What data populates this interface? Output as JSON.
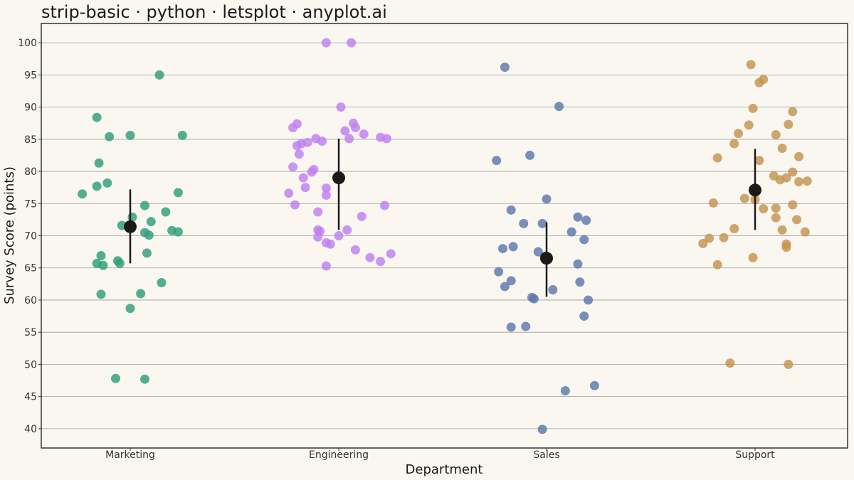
{
  "chart_data": {
    "type": "scatter",
    "subtype": "strip",
    "title": "strip-basic · python · letsplot · anyplot.ai",
    "xlabel": "Department",
    "ylabel": "Survey Score (points)",
    "ylim": [
      37,
      103
    ],
    "yticks": [
      40,
      45,
      50,
      55,
      60,
      65,
      70,
      75,
      80,
      85,
      90,
      95,
      100
    ],
    "grid": true,
    "categories": [
      "Marketing",
      "Engineering",
      "Sales",
      "Support"
    ],
    "series": [
      {
        "category": "Marketing",
        "color": "#2E9E7A",
        "mean": 71.4,
        "sd": [
          65.7,
          77.2
        ],
        "points": [
          [
            -0.23,
            76.5
          ],
          [
            -0.16,
            88.4
          ],
          [
            -0.1,
            85.4
          ],
          [
            0.0,
            85.6
          ],
          [
            0.25,
            85.6
          ],
          [
            -0.15,
            81.3
          ],
          [
            -0.11,
            78.2
          ],
          [
            -0.16,
            77.7
          ],
          [
            0.23,
            76.7
          ],
          [
            0.14,
            95.0
          ],
          [
            0.07,
            74.7
          ],
          [
            0.17,
            73.7
          ],
          [
            0.01,
            72.9
          ],
          [
            0.1,
            72.2
          ],
          [
            -0.04,
            71.6
          ],
          [
            0.07,
            70.5
          ],
          [
            0.09,
            70.1
          ],
          [
            0.2,
            70.8
          ],
          [
            0.23,
            70.6
          ],
          [
            0.08,
            67.3
          ],
          [
            -0.14,
            66.9
          ],
          [
            -0.06,
            66.1
          ],
          [
            -0.16,
            65.7
          ],
          [
            -0.13,
            65.4
          ],
          [
            -0.05,
            65.7
          ],
          [
            0.15,
            62.7
          ],
          [
            -0.14,
            60.9
          ],
          [
            0.05,
            61.0
          ],
          [
            0.0,
            58.7
          ],
          [
            -0.07,
            47.8
          ],
          [
            0.07,
            47.7
          ]
        ]
      },
      {
        "category": "Engineering",
        "color": "#C07FEF",
        "mean": 79.0,
        "sd": [
          70.9,
          85.1
        ],
        "points": [
          [
            -0.22,
            86.8
          ],
          [
            -0.2,
            87.4
          ],
          [
            -0.2,
            84.0
          ],
          [
            -0.18,
            84.3
          ],
          [
            -0.15,
            84.5
          ],
          [
            -0.11,
            85.1
          ],
          [
            -0.08,
            84.7
          ],
          [
            -0.22,
            80.7
          ],
          [
            -0.19,
            82.7
          ],
          [
            -0.17,
            79.0
          ],
          [
            -0.13,
            79.9
          ],
          [
            -0.12,
            80.3
          ],
          [
            -0.16,
            77.5
          ],
          [
            -0.24,
            76.6
          ],
          [
            -0.21,
            74.8
          ],
          [
            -0.06,
            100.0
          ],
          [
            0.06,
            100.0
          ],
          [
            0.01,
            90.0
          ],
          [
            0.03,
            86.3
          ],
          [
            0.07,
            87.5
          ],
          [
            0.08,
            86.8
          ],
          [
            0.05,
            85.1
          ],
          [
            0.12,
            85.8
          ],
          [
            0.2,
            85.3
          ],
          [
            0.23,
            85.1
          ],
          [
            -0.06,
            77.4
          ],
          [
            -0.06,
            76.3
          ],
          [
            -0.1,
            73.7
          ],
          [
            0.22,
            74.7
          ],
          [
            0.11,
            73.0
          ],
          [
            -0.1,
            70.9
          ],
          [
            -0.09,
            70.7
          ],
          [
            0.04,
            70.9
          ],
          [
            0.0,
            70.0
          ],
          [
            -0.1,
            69.8
          ],
          [
            -0.06,
            68.9
          ],
          [
            -0.04,
            68.7
          ],
          [
            0.08,
            67.8
          ],
          [
            0.15,
            66.6
          ],
          [
            0.2,
            66.0
          ],
          [
            0.25,
            67.2
          ],
          [
            -0.06,
            65.3
          ]
        ]
      },
      {
        "category": "Sales",
        "color": "#5B78A9",
        "mean": 66.5,
        "sd": [
          60.5,
          72.1
        ],
        "points": [
          [
            -0.2,
            96.2
          ],
          [
            0.06,
            90.1
          ],
          [
            -0.24,
            81.7
          ],
          [
            -0.08,
            82.5
          ],
          [
            0.0,
            75.7
          ],
          [
            -0.17,
            74.0
          ],
          [
            -0.11,
            71.9
          ],
          [
            -0.02,
            71.9
          ],
          [
            0.15,
            72.9
          ],
          [
            0.19,
            72.4
          ],
          [
            0.12,
            70.6
          ],
          [
            0.18,
            69.4
          ],
          [
            -0.21,
            68.0
          ],
          [
            -0.16,
            68.3
          ],
          [
            -0.04,
            67.5
          ],
          [
            -0.01,
            66.8
          ],
          [
            0.15,
            65.6
          ],
          [
            -0.23,
            64.4
          ],
          [
            -0.17,
            63.0
          ],
          [
            -0.2,
            62.1
          ],
          [
            0.16,
            62.8
          ],
          [
            0.03,
            61.6
          ],
          [
            -0.07,
            60.4
          ],
          [
            -0.06,
            60.2
          ],
          [
            0.2,
            60.0
          ],
          [
            -0.17,
            55.8
          ],
          [
            -0.1,
            55.9
          ],
          [
            0.18,
            57.5
          ],
          [
            0.09,
            45.9
          ],
          [
            0.23,
            46.7
          ],
          [
            -0.02,
            39.9
          ]
        ]
      },
      {
        "category": "Support",
        "color": "#C4924E",
        "mean": 77.1,
        "sd": [
          70.9,
          83.5
        ],
        "points": [
          [
            -0.02,
            96.6
          ],
          [
            0.04,
            94.3
          ],
          [
            0.02,
            93.8
          ],
          [
            -0.01,
            89.8
          ],
          [
            0.18,
            89.3
          ],
          [
            -0.03,
            87.2
          ],
          [
            0.16,
            87.3
          ],
          [
            -0.08,
            85.9
          ],
          [
            0.1,
            85.7
          ],
          [
            -0.1,
            84.3
          ],
          [
            0.13,
            83.6
          ],
          [
            -0.18,
            82.1
          ],
          [
            0.02,
            81.7
          ],
          [
            0.21,
            82.3
          ],
          [
            0.09,
            79.3
          ],
          [
            0.12,
            78.7
          ],
          [
            0.15,
            79.0
          ],
          [
            0.18,
            79.9
          ],
          [
            0.21,
            78.4
          ],
          [
            0.25,
            78.5
          ],
          [
            -0.05,
            75.8
          ],
          [
            0.0,
            75.6
          ],
          [
            -0.2,
            75.1
          ],
          [
            0.04,
            74.2
          ],
          [
            0.1,
            74.3
          ],
          [
            0.18,
            74.8
          ],
          [
            0.1,
            72.8
          ],
          [
            0.2,
            72.5
          ],
          [
            -0.1,
            71.1
          ],
          [
            0.13,
            70.9
          ],
          [
            0.24,
            70.6
          ],
          [
            -0.22,
            69.6
          ],
          [
            -0.15,
            69.7
          ],
          [
            -0.25,
            68.8
          ],
          [
            0.15,
            68.7
          ],
          [
            0.15,
            68.2
          ],
          [
            -0.18,
            65.5
          ],
          [
            -0.01,
            66.6
          ],
          [
            -0.12,
            50.2
          ],
          [
            0.16,
            50.0
          ]
        ]
      }
    ]
  }
}
